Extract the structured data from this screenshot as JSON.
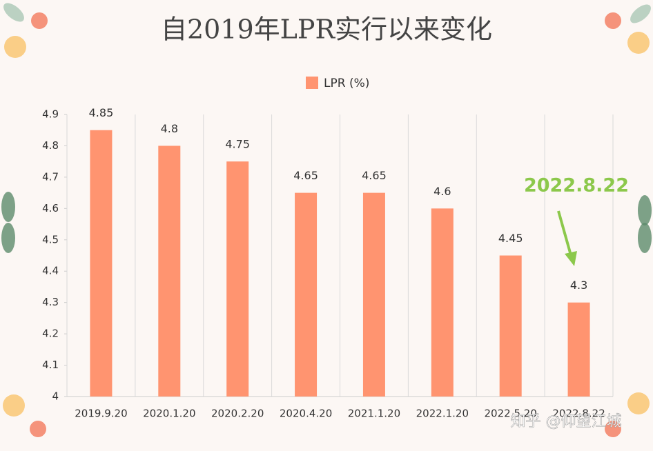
{
  "chart_data": {
    "type": "bar",
    "title": "自2019年LPR实行以来变化",
    "categories": [
      "2019.9.20",
      "2020.1.20",
      "2020.2.20",
      "2020.4.20",
      "2021.1.20",
      "2022.1.20",
      "2022.5.20",
      "2022.8.22"
    ],
    "series": [
      {
        "name": "LPR (%)",
        "color": "#ff9470",
        "values": [
          4.85,
          4.8,
          4.75,
          4.65,
          4.65,
          4.6,
          4.45,
          4.3
        ]
      }
    ],
    "ylim": [
      4,
      4.9
    ],
    "yticks": [
      4,
      4.1,
      4.2,
      4.3,
      4.4,
      4.5,
      4.6,
      4.7,
      4.8,
      4.9
    ],
    "grid": "category",
    "legend": "top",
    "annotation": {
      "text": "2022.8.22",
      "color": "#8cc84b"
    },
    "watermark": "知乎 @仰望江城"
  }
}
